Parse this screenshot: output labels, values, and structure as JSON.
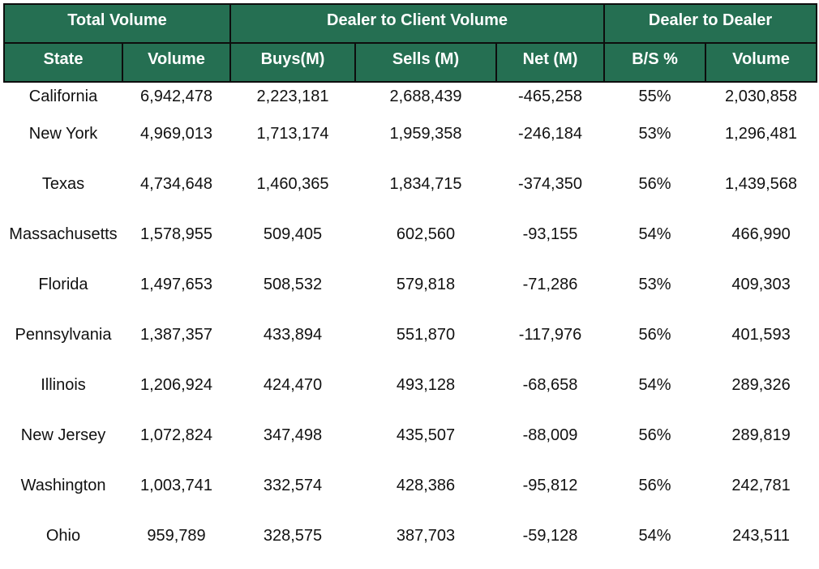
{
  "chart_data": {
    "type": "table",
    "group_headers": [
      {
        "label": "Total Volume",
        "span": 2
      },
      {
        "label": "Dealer to Client Volume",
        "span": 3
      },
      {
        "label": "Dealer to Dealer",
        "span": 2
      }
    ],
    "columns": [
      "State",
      "Volume",
      "Buys(M)",
      "Sells (M)",
      "Net (M)",
      "B/S %",
      "Volume"
    ],
    "rows": [
      [
        "California",
        "6,942,478",
        "2,223,181",
        "2,688,439",
        "-465,258",
        "55%",
        "2,030,858"
      ],
      [
        "New York",
        "4,969,013",
        "1,713,174",
        "1,959,358",
        "-246,184",
        "53%",
        "1,296,481"
      ],
      [
        "Texas",
        "4,734,648",
        "1,460,365",
        "1,834,715",
        "-374,350",
        "56%",
        "1,439,568"
      ],
      [
        "Massachusetts",
        "1,578,955",
        "509,405",
        "602,560",
        "-93,155",
        "54%",
        "466,990"
      ],
      [
        "Florida",
        "1,497,653",
        "508,532",
        "579,818",
        "-71,286",
        "53%",
        "409,303"
      ],
      [
        "Pennsylvania",
        "1,387,357",
        "433,894",
        "551,870",
        "-117,976",
        "56%",
        "401,593"
      ],
      [
        "Illinois",
        "1,206,924",
        "424,470",
        "493,128",
        "-68,658",
        "54%",
        "289,326"
      ],
      [
        "New Jersey",
        "1,072,824",
        "347,498",
        "435,507",
        "-88,009",
        "56%",
        "289,819"
      ],
      [
        "Washington",
        "1,003,741",
        "332,574",
        "428,386",
        "-95,812",
        "56%",
        "242,781"
      ],
      [
        "Ohio",
        "959,789",
        "328,575",
        "387,703",
        "-59,128",
        "54%",
        "243,511"
      ]
    ]
  },
  "colors": {
    "header_bg": "#256f52",
    "header_text": "#ffffff",
    "border": "#0d0d0d"
  }
}
